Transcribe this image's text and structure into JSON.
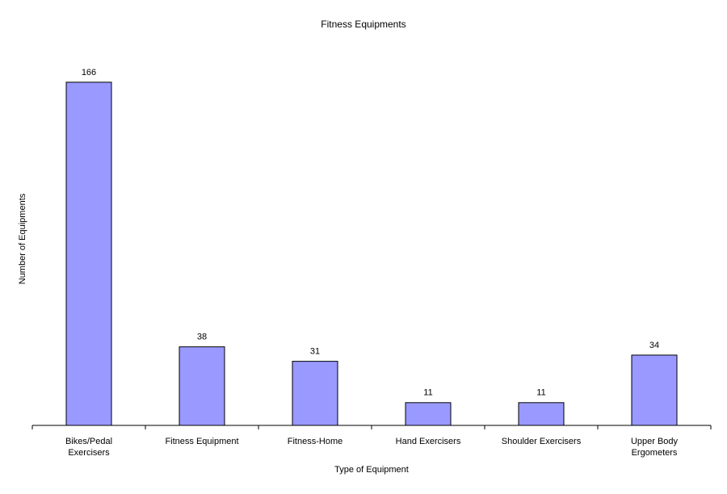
{
  "chart_data": {
    "type": "bar",
    "title": "Fitness Equipments",
    "x_label": "Type of Equipment",
    "y_label": "Number of Equipments",
    "categories": [
      "Bikes/Pedal Exercisers",
      "Fitness Equipment",
      "Fitness-Home",
      "Hand Exercisers",
      "Shoulder Exercisers",
      "Upper Body Ergometers"
    ],
    "values": [
      166,
      38,
      31,
      11,
      11,
      34
    ],
    "color": "#9999ff",
    "ylim": [
      0,
      180
    ]
  }
}
